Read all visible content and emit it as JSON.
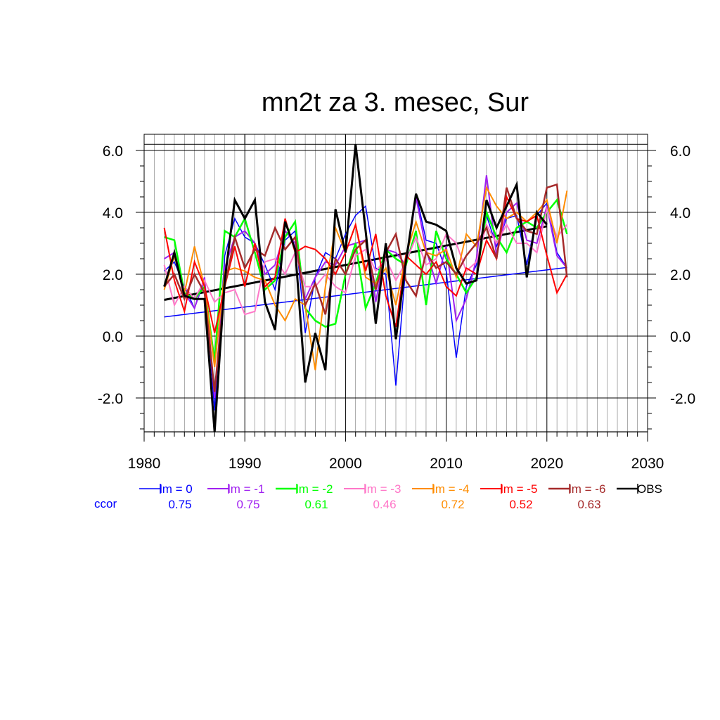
{
  "chart_data": {
    "type": "line",
    "title": "mn2t za 3. mesec, Sur",
    "xlabel": "",
    "ylabel": "",
    "xlim": [
      1980,
      2030
    ],
    "ylim": [
      -3.1,
      6.2
    ],
    "x_ticks": [
      1980,
      1990,
      2000,
      2010,
      2020,
      2030
    ],
    "y_ticks": [
      -2.0,
      0.0,
      2.0,
      4.0,
      6.0
    ],
    "y_tick_labels": [
      "-2.0",
      "0.0",
      "2.0",
      "4.0",
      "6.0"
    ],
    "grid": true,
    "legend_position": "bottom",
    "ccor_label": "ccor",
    "x": [
      1982,
      1983,
      1984,
      1985,
      1986,
      1987,
      1988,
      1989,
      1990,
      1991,
      1992,
      1993,
      1994,
      1995,
      1996,
      1997,
      1998,
      1999,
      2000,
      2001,
      2002,
      2003,
      2004,
      2005,
      2006,
      2007,
      2008,
      2009,
      2010,
      2011,
      2012,
      2013,
      2014,
      2015,
      2016,
      2017,
      2018,
      2019,
      2020,
      2021,
      2022
    ],
    "series": [
      {
        "name": "lm = 0",
        "ccor": "0.75",
        "color": "#0000ff",
        "width": 1.5,
        "values": [
          2.1,
          2.4,
          1.6,
          0.9,
          1.8,
          -2.4,
          2.6,
          3.8,
          3.2,
          3.0,
          2.3,
          1.5,
          3.1,
          3.4,
          0.1,
          1.9,
          2.7,
          2.5,
          3.3,
          3.9,
          4.2,
          2.2,
          2.0,
          -1.6,
          2.3,
          4.6,
          3.1,
          3.0,
          2.1,
          -0.7,
          1.6,
          2.3,
          3.9,
          2.9,
          3.8,
          3.9,
          2.3,
          3.9,
          4.3,
          2.7,
          2.2
        ]
      },
      {
        "name": "lm = -1",
        "ccor": "0.75",
        "color": "#a020f0",
        "width": 2,
        "values": [
          2.5,
          2.7,
          1.4,
          0.9,
          1.9,
          -2.0,
          2.2,
          3.2,
          3.4,
          3.0,
          2.0,
          2.3,
          3.4,
          3.0,
          1.2,
          1.9,
          2.4,
          2.3,
          2.9,
          3.0,
          3.1,
          1.1,
          2.8,
          2.7,
          2.3,
          4.5,
          2.8,
          1.7,
          2.9,
          0.5,
          1.2,
          2.5,
          5.2,
          2.6,
          4.0,
          4.3,
          3.1,
          3.0,
          4.2,
          2.6,
          2.2
        ]
      },
      {
        "name": "lm = -2",
        "ccor": "0.61",
        "color": "#00ff00",
        "width": 2.5,
        "values": [
          3.2,
          3.1,
          1.4,
          1.2,
          1.6,
          -0.8,
          3.4,
          3.2,
          3.8,
          2.7,
          1.5,
          1.8,
          3.2,
          3.7,
          0.9,
          0.5,
          0.3,
          0.4,
          2.0,
          3.0,
          0.9,
          1.7,
          2.8,
          2.5,
          2.3,
          3.4,
          1.0,
          3.4,
          2.5,
          2.0,
          1.4,
          1.9,
          4.0,
          3.2,
          2.7,
          3.5,
          3.7,
          3.5,
          4.0,
          4.4,
          3.3
        ]
      },
      {
        "name": "lm = -3",
        "ccor": "0.46",
        "color": "#ff77c8",
        "width": 2,
        "values": [
          2.3,
          1.0,
          1.6,
          1.2,
          1.8,
          1.1,
          1.4,
          1.5,
          0.7,
          0.8,
          2.4,
          2.5,
          2.0,
          2.7,
          1.6,
          1.6,
          2.0,
          1.6,
          1.4,
          2.6,
          2.8,
          2.1,
          2.5,
          1.8,
          2.4,
          3.2,
          2.3,
          2.5,
          3.3,
          3.0,
          2.1,
          2.4,
          3.6,
          3.0,
          3.6,
          3.0,
          3.0,
          2.7,
          4.1,
          3.2,
          3.6
        ]
      },
      {
        "name": "lm = -4",
        "ccor": "0.72",
        "color": "#ff8c00",
        "width": 2,
        "values": [
          1.5,
          2.6,
          1.4,
          2.9,
          1.6,
          -1.0,
          2.1,
          2.2,
          2.1,
          1.9,
          1.8,
          1.0,
          0.5,
          1.2,
          1.0,
          -1.1,
          1.6,
          3.5,
          2.7,
          3.6,
          1.9,
          1.7,
          2.2,
          1.0,
          2.6,
          3.7,
          2.7,
          2.6,
          2.8,
          1.9,
          3.3,
          2.9,
          4.8,
          4.2,
          3.8,
          4.0,
          3.7,
          4.0,
          4.4,
          3.0,
          4.7
        ]
      },
      {
        "name": "lm = -5",
        "ccor": "0.52",
        "color": "#ff0000",
        "width": 2,
        "values": [
          3.5,
          1.8,
          0.8,
          2.4,
          1.6,
          0.1,
          1.6,
          2.9,
          1.6,
          3.0,
          1.6,
          1.9,
          3.8,
          2.7,
          2.9,
          2.8,
          2.5,
          2.0,
          2.7,
          3.6,
          2.1,
          3.3,
          1.3,
          0.3,
          2.6,
          2.3,
          2.0,
          2.4,
          1.6,
          1.3,
          2.2,
          2.0,
          3.1,
          2.5,
          4.5,
          3.8,
          3.7,
          3.9,
          2.6,
          1.4,
          2.0
        ]
      },
      {
        "name": "lm = -6",
        "ccor": "0.63",
        "color": "#a52a2a",
        "width": 2.5,
        "values": [
          1.6,
          2.0,
          1.2,
          2.0,
          1.4,
          -1.8,
          1.6,
          3.2,
          2.2,
          2.8,
          2.6,
          3.5,
          2.8,
          3.2,
          1.0,
          1.7,
          0.7,
          2.5,
          2.0,
          2.8,
          3.1,
          1.5,
          2.7,
          3.3,
          1.8,
          1.3,
          2.7,
          2.2,
          2.4,
          2.0,
          2.6,
          3.0,
          3.5,
          2.5,
          4.8,
          3.8,
          3.4,
          3.3,
          4.8,
          4.9,
          1.9
        ]
      },
      {
        "name": "OBS",
        "ccor": "",
        "color": "#000000",
        "width": 3,
        "values": [
          1.6,
          2.7,
          1.3,
          1.2,
          1.2,
          -3.1,
          1.8,
          4.4,
          3.8,
          4.4,
          1.1,
          0.2,
          3.7,
          2.8,
          -1.5,
          0.1,
          -1.1,
          4.1,
          2.7,
          6.2,
          3.4,
          0.4,
          3.0,
          -0.1,
          2.4,
          4.6,
          3.7,
          3.6,
          3.4,
          2.2,
          1.7,
          1.8,
          4.4,
          3.5,
          4.2,
          4.9,
          1.9,
          4.0,
          3.6,
          null,
          null
        ]
      }
    ],
    "trends": [
      {
        "series": "lm = 0",
        "color": "#0000ff",
        "width": 1.5,
        "x": [
          1982,
          2022
        ],
        "y": [
          0.62,
          2.22
        ]
      },
      {
        "series": "OBS",
        "color": "#000000",
        "width": 3,
        "x": [
          1982,
          2020
        ],
        "y": [
          1.17,
          3.55
        ]
      }
    ]
  }
}
